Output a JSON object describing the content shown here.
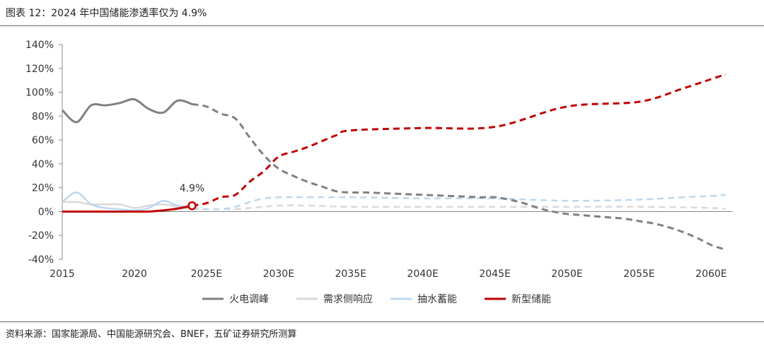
{
  "header": {
    "title": "图表 12：2024 年中国储能渗透率仅为 4.9%"
  },
  "footer": {
    "source": "资料来源：国家能源局、中国能源研究会、BNEF，五矿证券研究所测算"
  },
  "chart_data": {
    "type": "line",
    "title": "",
    "xlabel": "",
    "ylabel": "",
    "x_ticks": [
      2015,
      2020,
      2025,
      2030,
      2035,
      2040,
      2045,
      2050,
      2055,
      2060
    ],
    "x_tick_labels": [
      "2015",
      "2020",
      "2025E",
      "2030E",
      "2035E",
      "2040E",
      "2045E",
      "2050E",
      "2055E",
      "2060E"
    ],
    "xlim": [
      2015,
      2061.5
    ],
    "ylim": [
      -40,
      140
    ],
    "y_ticks": [
      -40,
      -20,
      0,
      20,
      40,
      60,
      80,
      100,
      120,
      140
    ],
    "y_tick_labels": [
      "-40%",
      "-20%",
      "0%",
      "20%",
      "40%",
      "60%",
      "80%",
      "100%",
      "120%",
      "140%"
    ],
    "grid": false,
    "legend_position": "bottom",
    "annotation": {
      "text": "4.9%",
      "x": 2024,
      "y": 4.9
    },
    "series": [
      {
        "name": "火电调峰",
        "color": "#808080",
        "solid_until": 2024,
        "points": [
          [
            2015,
            85
          ],
          [
            2016,
            75
          ],
          [
            2017,
            89
          ],
          [
            2018,
            89
          ],
          [
            2019,
            91
          ],
          [
            2020,
            94
          ],
          [
            2021,
            86
          ],
          [
            2022,
            83
          ],
          [
            2023,
            93
          ],
          [
            2024,
            90
          ],
          [
            2025,
            88
          ],
          [
            2026,
            82
          ],
          [
            2027,
            78
          ],
          [
            2028,
            62
          ],
          [
            2029,
            47
          ],
          [
            2030,
            36
          ],
          [
            2031,
            30
          ],
          [
            2032,
            25
          ],
          [
            2033,
            21
          ],
          [
            2034,
            17
          ],
          [
            2035,
            16
          ],
          [
            2036,
            16
          ],
          [
            2037,
            15.5
          ],
          [
            2038,
            15
          ],
          [
            2039,
            14.5
          ],
          [
            2040,
            14
          ],
          [
            2041,
            13.5
          ],
          [
            2042,
            13
          ],
          [
            2043,
            12.5
          ],
          [
            2044,
            12
          ],
          [
            2045,
            12
          ],
          [
            2046,
            10
          ],
          [
            2047,
            7
          ],
          [
            2048,
            3
          ],
          [
            2049,
            0
          ],
          [
            2050,
            -2
          ],
          [
            2051,
            -3
          ],
          [
            2052,
            -4
          ],
          [
            2053,
            -5
          ],
          [
            2054,
            -6
          ],
          [
            2055,
            -8
          ],
          [
            2056,
            -10
          ],
          [
            2057,
            -13
          ],
          [
            2058,
            -17
          ],
          [
            2059,
            -22
          ],
          [
            2060,
            -28
          ],
          [
            2061,
            -32
          ]
        ]
      },
      {
        "name": "需求侧响应",
        "color": "#d9d9d9",
        "solid_until": 2024,
        "points": [
          [
            2015,
            8
          ],
          [
            2016,
            8
          ],
          [
            2017,
            6
          ],
          [
            2018,
            6
          ],
          [
            2019,
            6
          ],
          [
            2020,
            3
          ],
          [
            2021,
            5
          ],
          [
            2022,
            6
          ],
          [
            2023,
            4
          ],
          [
            2024,
            2
          ],
          [
            2025,
            2
          ],
          [
            2026,
            2
          ],
          [
            2027,
            2
          ],
          [
            2028,
            3
          ],
          [
            2029,
            4
          ],
          [
            2030,
            5
          ],
          [
            2032,
            5
          ],
          [
            2035,
            4
          ],
          [
            2040,
            4
          ],
          [
            2045,
            4
          ],
          [
            2050,
            4
          ],
          [
            2055,
            4
          ],
          [
            2060,
            3
          ],
          [
            2061,
            2
          ]
        ]
      },
      {
        "name": "抽水蓄能",
        "color": "#bdd7ee",
        "solid_until": 2024,
        "points": [
          [
            2015,
            8
          ],
          [
            2016,
            16
          ],
          [
            2017,
            6
          ],
          [
            2018,
            3
          ],
          [
            2019,
            2
          ],
          [
            2020,
            1
          ],
          [
            2021,
            3
          ],
          [
            2022,
            9
          ],
          [
            2023,
            5
          ],
          [
            2024,
            3
          ],
          [
            2025,
            2
          ],
          [
            2026,
            2
          ],
          [
            2027,
            4
          ],
          [
            2028,
            8
          ],
          [
            2029,
            11
          ],
          [
            2030,
            12
          ],
          [
            2032,
            12
          ],
          [
            2035,
            12
          ],
          [
            2040,
            11
          ],
          [
            2045,
            11
          ],
          [
            2050,
            9
          ],
          [
            2055,
            10
          ],
          [
            2058,
            12
          ],
          [
            2060,
            13
          ],
          [
            2061,
            14
          ]
        ]
      },
      {
        "name": "新型储能",
        "color": "#c00000",
        "solid_until": 2024,
        "points": [
          [
            2015,
            0
          ],
          [
            2016,
            0
          ],
          [
            2017,
            0
          ],
          [
            2018,
            0
          ],
          [
            2019,
            0
          ],
          [
            2020,
            0
          ],
          [
            2021,
            0
          ],
          [
            2022,
            1
          ],
          [
            2023,
            2.5
          ],
          [
            2024,
            4.9
          ],
          [
            2025,
            7
          ],
          [
            2026,
            12
          ],
          [
            2027,
            14
          ],
          [
            2028,
            25
          ],
          [
            2029,
            34
          ],
          [
            2030,
            46
          ],
          [
            2031,
            50
          ],
          [
            2032,
            54
          ],
          [
            2033,
            59
          ],
          [
            2034,
            64
          ],
          [
            2035,
            68
          ],
          [
            2040,
            70
          ],
          [
            2045,
            71
          ],
          [
            2050,
            88
          ],
          [
            2055,
            92
          ],
          [
            2058,
            103
          ],
          [
            2060,
            111
          ],
          [
            2061,
            115
          ]
        ]
      }
    ]
  }
}
